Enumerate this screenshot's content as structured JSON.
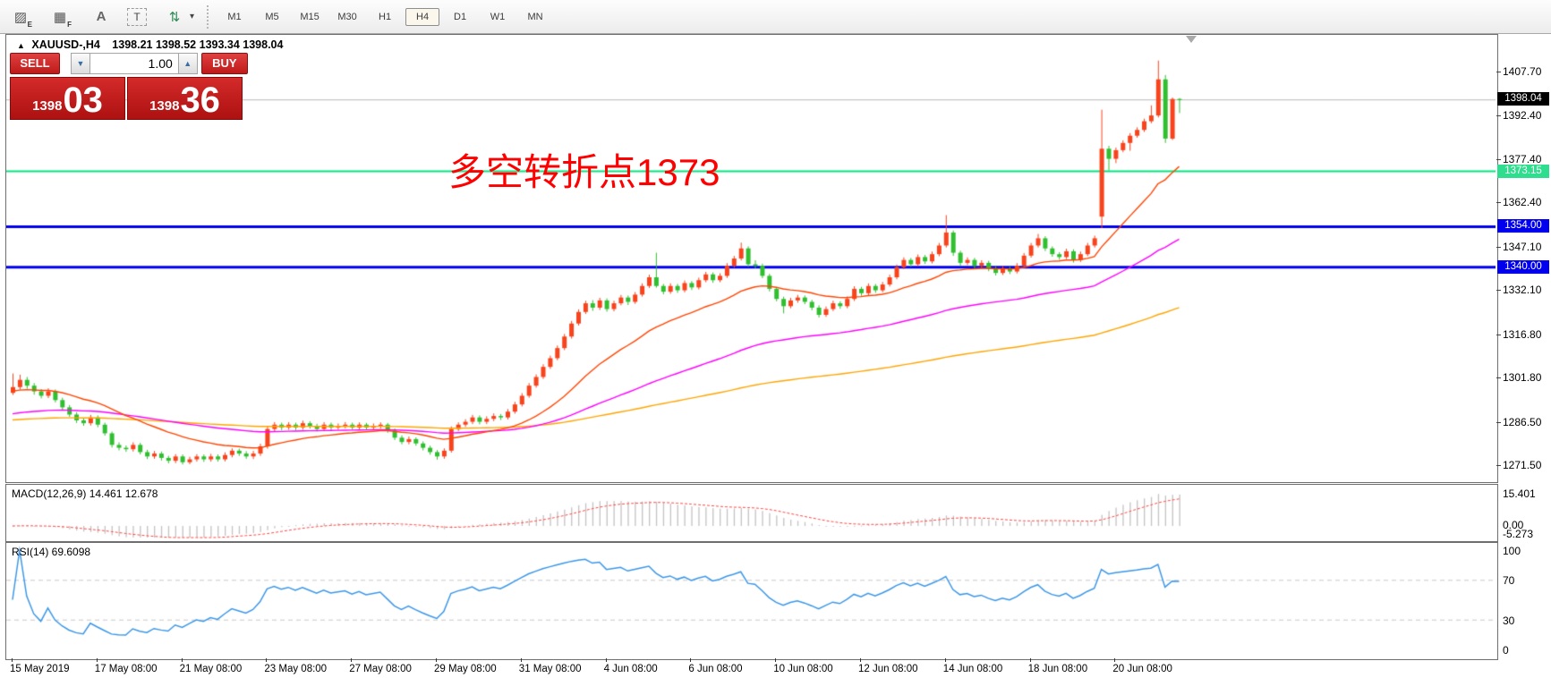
{
  "toolbar": {
    "icons": [
      {
        "name": "hatch-expert-icon",
        "glyph": "▨",
        "sub": "E"
      },
      {
        "name": "grid-fibo-icon",
        "glyph": "▦",
        "sub": "F"
      },
      {
        "name": "text-label-icon",
        "glyph": "A",
        "sub": ""
      },
      {
        "name": "text-box-icon",
        "glyph": "T",
        "sub": ""
      },
      {
        "name": "cycle-arrows-icon",
        "glyph": "⇅",
        "sub": ""
      },
      {
        "name": "dropdown-caret-icon",
        "glyph": "▾",
        "sub": ""
      }
    ],
    "timeframes": [
      "M1",
      "M5",
      "M15",
      "M30",
      "H1",
      "H4",
      "D1",
      "W1",
      "MN"
    ],
    "selected_timeframe": "H4"
  },
  "chart": {
    "header": {
      "collapse_arrow": "▲",
      "symbol": "XAUUSD-,H4",
      "ohlc": "1398.21 1398.52 1393.34 1398.04"
    },
    "annotation": {
      "text": "多空转折点1373",
      "color": "#ff0000"
    },
    "current_price": {
      "value": 1398.04,
      "label": "1398.04",
      "line_color": "#b8b8b8",
      "badge_color": "#000000"
    },
    "hlines": [
      {
        "price": 1373.15,
        "label": "1373.15",
        "color": "#00e57f",
        "badge": "#2fdd8e",
        "width": 2
      },
      {
        "price": 1354.0,
        "label": "1354.00",
        "color": "#0000ee",
        "badge": "#0000ee",
        "width": 3
      },
      {
        "price": 1340.0,
        "label": "1340.00",
        "color": "#0000ee",
        "badge": "#0000ee",
        "width": 3
      }
    ],
    "price_ticks": [
      "1407.70",
      "1392.40",
      "1377.40",
      "1362.40",
      "1347.10",
      "1332.10",
      "1316.80",
      "1301.80",
      "1286.50",
      "1271.50"
    ]
  },
  "trade_panel": {
    "sell_label": "SELL",
    "buy_label": "BUY",
    "volume": "1.00",
    "spin_down": "▼",
    "spin_up": "▲",
    "sell_price_small": "1398",
    "sell_price_big": "03",
    "buy_price_small": "1398",
    "buy_price_big": "36"
  },
  "macd": {
    "label": "MACD(12,26,9) 14.461 12.678",
    "axis": [
      "15.401",
      "0.00",
      "-5.273"
    ]
  },
  "rsi": {
    "label": "RSI(14) 69.6098",
    "axis": [
      "100",
      "70",
      "30",
      "0"
    ]
  },
  "chart_data": {
    "type": "candlestick",
    "symbol": "XAUUSD-",
    "timeframe": "H4",
    "current_candle": {
      "open": 1398.21,
      "high": 1398.52,
      "low": 1393.34,
      "close": 1398.04
    },
    "up_color": "#f8431c",
    "down_color": "#2fbf2f",
    "y_axis": {
      "anchor_high": 1407.7,
      "anchor_low": 1271.5
    },
    "time_labels": [
      "15 May 2019",
      "17 May 08:00",
      "21 May 08:00",
      "23 May 08:00",
      "27 May 08:00",
      "29 May 08:00",
      "31 May 08:00",
      "4 Jun 08:00",
      "6 Jun 08:00",
      "10 Jun 08:00",
      "12 Jun 08:00",
      "14 Jun 08:00",
      "18 Jun 08:00",
      "20 Jun 08:00"
    ],
    "label_every_n_candles": 12,
    "moving_averages": [
      {
        "name": "slow-ma",
        "period": 170,
        "seed": 1287,
        "color": "#ffa500"
      },
      {
        "name": "medium-ma",
        "period": 70,
        "seed": 1289,
        "color": "#ff00ff"
      },
      {
        "name": "fast-ma",
        "period": 22,
        "seed": 1297,
        "color": "#ff4500"
      }
    ],
    "macd": {
      "fast": 12,
      "slow": 26,
      "signal": 9,
      "value": 14.461,
      "signal_value": 12.678,
      "scale_max": 15.401,
      "scale_min": -5.273,
      "bar_color": "#c3c3c3",
      "signal_color": "#ff4545"
    },
    "rsi": {
      "period": 14,
      "value": 69.6098,
      "levels": [
        70,
        30
      ],
      "line_color": "#3b97e8",
      "level_color": "#c8c8c8"
    },
    "candles": [
      [
        1296.5,
        1303.2,
        1295.8,
        1298.5
      ],
      [
        1298.5,
        1302.8,
        1297.6,
        1301.0
      ],
      [
        1301.0,
        1302.0,
        1297.9,
        1299.0
      ],
      [
        1299.0,
        1299.9,
        1295.9,
        1297.0
      ],
      [
        1297.0,
        1297.8,
        1294.6,
        1295.5
      ],
      [
        1295.5,
        1298.1,
        1294.7,
        1297.0
      ],
      [
        1297.0,
        1297.7,
        1293.2,
        1294.0
      ],
      [
        1294.0,
        1294.8,
        1290.6,
        1291.5
      ],
      [
        1291.5,
        1292.3,
        1288.2,
        1289.0
      ],
      [
        1289.0,
        1289.8,
        1286.1,
        1287.0
      ],
      [
        1287.0,
        1287.9,
        1285.1,
        1286.0
      ],
      [
        1286.0,
        1288.9,
        1285.2,
        1288.0
      ],
      [
        1288.0,
        1288.7,
        1284.6,
        1285.5
      ],
      [
        1285.5,
        1286.2,
        1281.7,
        1282.5
      ],
      [
        1282.5,
        1283.1,
        1277.6,
        1278.5
      ],
      [
        1278.5,
        1279.4,
        1276.6,
        1277.5
      ],
      [
        1277.5,
        1278.3,
        1276.1,
        1277.0
      ],
      [
        1277.0,
        1279.4,
        1276.2,
        1278.5
      ],
      [
        1278.5,
        1279.2,
        1275.2,
        1276.0
      ],
      [
        1276.0,
        1276.8,
        1273.6,
        1274.5
      ],
      [
        1274.5,
        1276.4,
        1273.7,
        1275.5
      ],
      [
        1275.5,
        1276.2,
        1273.1,
        1274.0
      ],
      [
        1274.0,
        1274.7,
        1272.1,
        1273.0
      ],
      [
        1273.0,
        1275.3,
        1272.2,
        1274.5
      ],
      [
        1274.5,
        1275.2,
        1271.7,
        1272.5
      ],
      [
        1272.5,
        1274.4,
        1271.8,
        1273.5
      ],
      [
        1273.5,
        1275.3,
        1272.7,
        1274.5
      ],
      [
        1274.5,
        1275.2,
        1272.6,
        1273.5
      ],
      [
        1273.5,
        1275.4,
        1272.7,
        1274.5
      ],
      [
        1274.5,
        1275.2,
        1272.7,
        1273.5
      ],
      [
        1273.5,
        1275.9,
        1272.8,
        1275.0
      ],
      [
        1275.0,
        1277.3,
        1274.2,
        1276.5
      ],
      [
        1276.5,
        1277.2,
        1274.7,
        1275.5
      ],
      [
        1275.5,
        1276.3,
        1273.7,
        1274.5
      ],
      [
        1274.5,
        1276.4,
        1273.6,
        1275.5
      ],
      [
        1275.5,
        1278.9,
        1274.7,
        1278.0
      ],
      [
        1278.0,
        1284.8,
        1277.2,
        1284.0
      ],
      [
        1284.0,
        1286.4,
        1283.1,
        1285.5
      ],
      [
        1285.5,
        1286.2,
        1283.6,
        1284.5
      ],
      [
        1284.5,
        1286.4,
        1283.7,
        1285.5
      ],
      [
        1285.5,
        1286.2,
        1283.6,
        1284.5
      ],
      [
        1284.5,
        1286.9,
        1283.7,
        1286.0
      ],
      [
        1286.0,
        1286.7,
        1284.1,
        1285.0
      ],
      [
        1285.0,
        1285.8,
        1283.2,
        1284.0
      ],
      [
        1284.0,
        1286.4,
        1283.2,
        1285.5
      ],
      [
        1285.5,
        1286.2,
        1283.6,
        1284.5
      ],
      [
        1284.5,
        1285.9,
        1283.7,
        1285.0
      ],
      [
        1285.0,
        1286.4,
        1284.2,
        1285.5
      ],
      [
        1285.5,
        1286.2,
        1283.7,
        1284.5
      ],
      [
        1284.5,
        1286.3,
        1283.8,
        1285.5
      ],
      [
        1285.5,
        1286.1,
        1283.6,
        1284.5
      ],
      [
        1284.5,
        1285.9,
        1283.7,
        1285.0
      ],
      [
        1285.0,
        1286.3,
        1284.1,
        1285.5
      ],
      [
        1285.5,
        1286.1,
        1282.7,
        1283.5
      ],
      [
        1283.5,
        1284.2,
        1280.2,
        1281.0
      ],
      [
        1281.0,
        1281.8,
        1278.7,
        1279.5
      ],
      [
        1279.5,
        1281.4,
        1278.7,
        1280.5
      ],
      [
        1280.5,
        1281.1,
        1278.2,
        1279.0
      ],
      [
        1279.0,
        1279.7,
        1276.6,
        1277.5
      ],
      [
        1277.5,
        1278.2,
        1275.1,
        1276.0
      ],
      [
        1276.0,
        1276.7,
        1273.4,
        1274.5
      ],
      [
        1274.5,
        1277.3,
        1273.7,
        1276.5
      ],
      [
        1276.5,
        1284.9,
        1275.8,
        1284.0
      ],
      [
        1284.0,
        1286.3,
        1283.2,
        1285.5
      ],
      [
        1285.5,
        1287.4,
        1284.7,
        1286.5
      ],
      [
        1286.5,
        1288.9,
        1285.7,
        1288.0
      ],
      [
        1288.0,
        1288.7,
        1285.6,
        1286.5
      ],
      [
        1286.5,
        1288.4,
        1285.7,
        1287.5
      ],
      [
        1287.5,
        1289.4,
        1286.7,
        1288.5
      ],
      [
        1288.5,
        1289.2,
        1287.1,
        1288.0
      ],
      [
        1288.0,
        1290.9,
        1287.3,
        1290.0
      ],
      [
        1290.0,
        1293.4,
        1289.3,
        1292.5
      ],
      [
        1292.5,
        1296.4,
        1291.8,
        1295.5
      ],
      [
        1295.5,
        1299.9,
        1294.8,
        1299.0
      ],
      [
        1299.0,
        1302.9,
        1298.3,
        1302.0
      ],
      [
        1302.0,
        1306.4,
        1301.3,
        1305.5
      ],
      [
        1305.5,
        1309.4,
        1304.8,
        1308.5
      ],
      [
        1308.5,
        1312.9,
        1307.8,
        1312.0
      ],
      [
        1312.0,
        1316.9,
        1311.3,
        1316.0
      ],
      [
        1316.0,
        1321.4,
        1315.3,
        1320.5
      ],
      [
        1320.5,
        1325.4,
        1319.8,
        1324.5
      ],
      [
        1324.5,
        1328.4,
        1323.8,
        1327.5
      ],
      [
        1327.5,
        1328.6,
        1324.9,
        1326.0
      ],
      [
        1326.0,
        1329.4,
        1325.2,
        1328.5
      ],
      [
        1328.5,
        1329.2,
        1324.6,
        1325.5
      ],
      [
        1325.5,
        1328.4,
        1324.7,
        1327.5
      ],
      [
        1327.5,
        1330.4,
        1326.8,
        1329.5
      ],
      [
        1329.5,
        1330.2,
        1326.9,
        1328.0
      ],
      [
        1328.0,
        1331.4,
        1327.3,
        1330.5
      ],
      [
        1330.5,
        1334.4,
        1329.8,
        1333.5
      ],
      [
        1333.5,
        1337.4,
        1332.8,
        1336.5
      ],
      [
        1336.5,
        1345.0,
        1332.9,
        1333.5
      ],
      [
        1333.5,
        1334.2,
        1330.6,
        1331.5
      ],
      [
        1331.5,
        1334.4,
        1330.8,
        1333.5
      ],
      [
        1333.5,
        1334.2,
        1331.1,
        1332.0
      ],
      [
        1332.0,
        1335.4,
        1331.3,
        1334.5
      ],
      [
        1334.5,
        1335.2,
        1332.1,
        1333.0
      ],
      [
        1333.0,
        1336.4,
        1332.3,
        1335.5
      ],
      [
        1335.5,
        1338.4,
        1334.8,
        1337.5
      ],
      [
        1337.5,
        1338.2,
        1334.6,
        1335.5
      ],
      [
        1335.5,
        1337.9,
        1334.8,
        1337.0
      ],
      [
        1337.0,
        1341.4,
        1336.3,
        1340.5
      ],
      [
        1340.5,
        1343.9,
        1339.8,
        1343.0
      ],
      [
        1343.0,
        1348.5,
        1342.3,
        1346.5
      ],
      [
        1346.5,
        1347.2,
        1340.1,
        1341.0
      ],
      [
        1341.0,
        1342.4,
        1339.6,
        1340.5
      ],
      [
        1340.5,
        1341.2,
        1336.2,
        1337.0
      ],
      [
        1337.0,
        1337.7,
        1331.6,
        1332.5
      ],
      [
        1332.5,
        1333.2,
        1328.2,
        1329.0
      ],
      [
        1329.0,
        1329.8,
        1324.0,
        1326.5
      ],
      [
        1326.5,
        1329.4,
        1325.8,
        1328.5
      ],
      [
        1328.5,
        1330.4,
        1327.7,
        1329.5
      ],
      [
        1329.5,
        1330.2,
        1327.2,
        1328.0
      ],
      [
        1328.0,
        1328.7,
        1325.1,
        1326.0
      ],
      [
        1326.0,
        1326.8,
        1322.6,
        1323.5
      ],
      [
        1323.5,
        1326.4,
        1322.8,
        1325.5
      ],
      [
        1325.5,
        1328.4,
        1324.8,
        1327.5
      ],
      [
        1327.5,
        1328.2,
        1325.6,
        1326.5
      ],
      [
        1326.5,
        1329.9,
        1325.8,
        1329.0
      ],
      [
        1329.0,
        1333.4,
        1328.3,
        1332.5
      ],
      [
        1332.5,
        1333.2,
        1330.1,
        1331.0
      ],
      [
        1331.0,
        1334.4,
        1330.3,
        1333.5
      ],
      [
        1333.5,
        1334.2,
        1331.1,
        1332.0
      ],
      [
        1332.0,
        1334.9,
        1331.3,
        1334.0
      ],
      [
        1334.0,
        1337.4,
        1333.3,
        1336.5
      ],
      [
        1336.5,
        1340.9,
        1335.8,
        1340.0
      ],
      [
        1340.0,
        1343.4,
        1339.3,
        1342.5
      ],
      [
        1342.5,
        1343.2,
        1340.1,
        1341.0
      ],
      [
        1341.0,
        1344.4,
        1340.3,
        1343.5
      ],
      [
        1343.5,
        1344.2,
        1341.1,
        1342.0
      ],
      [
        1342.0,
        1345.4,
        1341.3,
        1344.5
      ],
      [
        1344.5,
        1348.4,
        1343.8,
        1347.5
      ],
      [
        1347.5,
        1358.0,
        1346.8,
        1352.0
      ],
      [
        1352.0,
        1352.7,
        1343.9,
        1345.0
      ],
      [
        1345.0,
        1345.7,
        1340.4,
        1341.5
      ],
      [
        1341.5,
        1343.4,
        1340.7,
        1342.5
      ],
      [
        1342.5,
        1343.2,
        1339.6,
        1340.5
      ],
      [
        1340.5,
        1342.4,
        1339.8,
        1341.5
      ],
      [
        1341.5,
        1342.2,
        1338.6,
        1339.5
      ],
      [
        1339.5,
        1340.3,
        1337.1,
        1338.0
      ],
      [
        1338.0,
        1340.4,
        1337.3,
        1339.5
      ],
      [
        1339.5,
        1340.2,
        1337.6,
        1338.5
      ],
      [
        1338.5,
        1341.4,
        1337.8,
        1340.5
      ],
      [
        1340.5,
        1344.9,
        1339.8,
        1344.0
      ],
      [
        1344.0,
        1348.4,
        1343.3,
        1347.5
      ],
      [
        1347.5,
        1351.5,
        1346.8,
        1350.0
      ],
      [
        1350.0,
        1350.7,
        1345.6,
        1346.5
      ],
      [
        1346.5,
        1347.2,
        1343.6,
        1344.5
      ],
      [
        1344.5,
        1345.2,
        1342.6,
        1343.5
      ],
      [
        1343.5,
        1346.4,
        1342.8,
        1345.5
      ],
      [
        1345.5,
        1346.2,
        1341.6,
        1342.5
      ],
      [
        1342.5,
        1345.4,
        1341.8,
        1344.5
      ],
      [
        1344.5,
        1348.4,
        1343.8,
        1347.5
      ],
      [
        1347.5,
        1350.9,
        1346.8,
        1350.0
      ],
      [
        1357.5,
        1394.5,
        1353.5,
        1381.0
      ],
      [
        1381.0,
        1382.0,
        1373.5,
        1377.5
      ],
      [
        1377.5,
        1381.4,
        1376.0,
        1380.5
      ],
      [
        1380.5,
        1383.9,
        1379.8,
        1383.0
      ],
      [
        1383.0,
        1386.4,
        1380.3,
        1385.5
      ],
      [
        1385.5,
        1388.4,
        1384.8,
        1387.5
      ],
      [
        1387.5,
        1391.4,
        1386.8,
        1390.5
      ],
      [
        1390.5,
        1396.0,
        1389.8,
        1392.5
      ],
      [
        1392.5,
        1411.5,
        1391.8,
        1405.0
      ],
      [
        1405.0,
        1406.5,
        1383.0,
        1384.5
      ],
      [
        1384.5,
        1398.7,
        1384.0,
        1398.2
      ],
      [
        1398.21,
        1398.52,
        1393.34,
        1398.04
      ]
    ]
  }
}
